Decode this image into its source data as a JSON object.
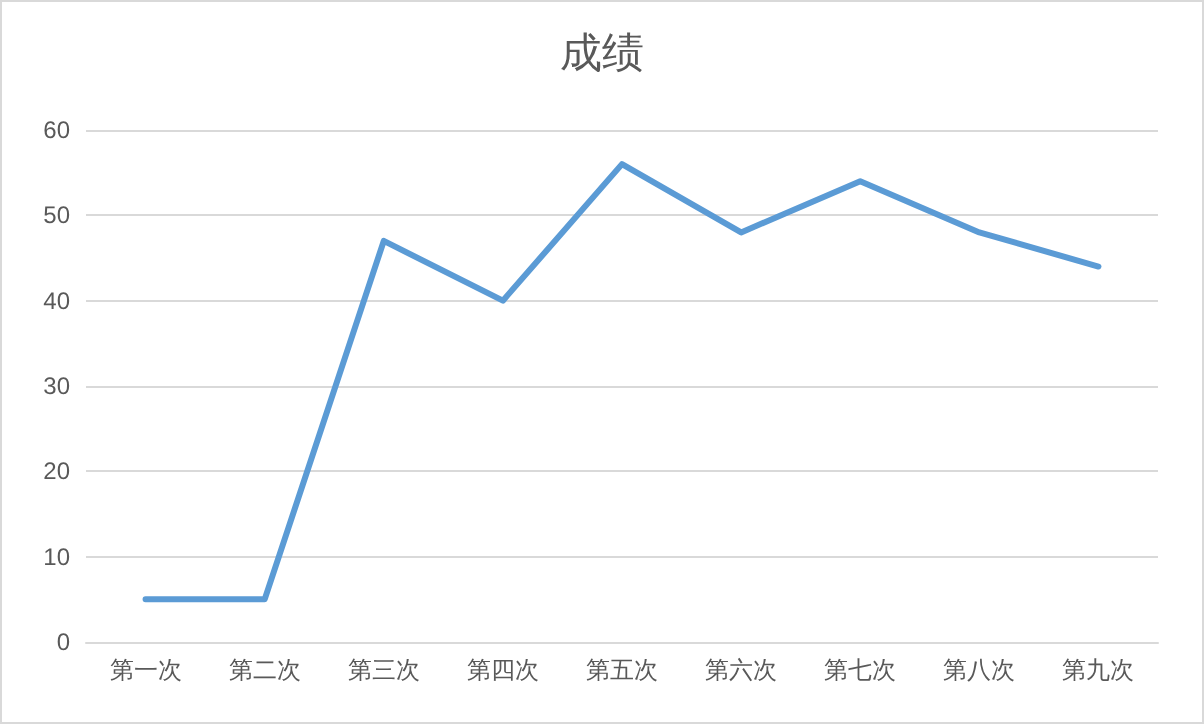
{
  "chart_data": {
    "type": "line",
    "title": "成绩",
    "categories": [
      "第一次",
      "第二次",
      "第三次",
      "第四次",
      "第五次",
      "第六次",
      "第七次",
      "第八次",
      "第九次"
    ],
    "series": [
      {
        "color": "#5b9bd5",
        "values": [
          5,
          5,
          47,
          40,
          56,
          48,
          54,
          48,
          44
        ]
      }
    ],
    "ylim": [
      0,
      60
    ],
    "yticks": [
      0,
      10,
      20,
      30,
      40,
      50,
      60
    ],
    "grid": "y",
    "marker": "none",
    "line_style": "solid"
  }
}
